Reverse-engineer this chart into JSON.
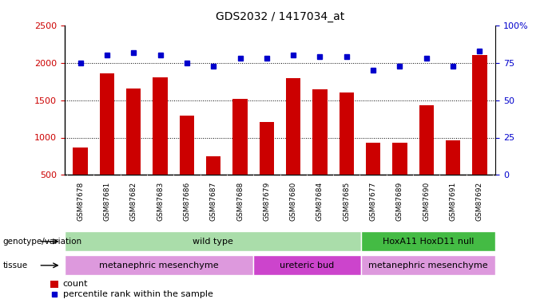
{
  "title": "GDS2032 / 1417034_at",
  "samples": [
    "GSM87678",
    "GSM87681",
    "GSM87682",
    "GSM87683",
    "GSM87686",
    "GSM87687",
    "GSM87688",
    "GSM87679",
    "GSM87680",
    "GSM87684",
    "GSM87685",
    "GSM87677",
    "GSM87689",
    "GSM87690",
    "GSM87691",
    "GSM87692"
  ],
  "counts": [
    870,
    1860,
    1660,
    1810,
    1290,
    750,
    1520,
    1210,
    1790,
    1650,
    1600,
    930,
    930,
    1430,
    960,
    2100
  ],
  "percentiles": [
    75,
    80,
    82,
    80,
    75,
    73,
    78,
    78,
    80,
    79,
    79,
    70,
    73,
    78,
    73,
    83
  ],
  "bar_color": "#cc0000",
  "dot_color": "#0000cc",
  "ylim_left": [
    500,
    2500
  ],
  "ylim_right": [
    0,
    100
  ],
  "yticks_left": [
    500,
    1000,
    1500,
    2000,
    2500
  ],
  "yticks_right": [
    0,
    25,
    50,
    75,
    100
  ],
  "grid_lines": [
    1000,
    1500,
    2000
  ],
  "title_fontsize": 10,
  "axis_label_color_left": "#cc0000",
  "axis_label_color_right": "#0000cc",
  "genotype_groups": [
    {
      "label": "wild type",
      "start": 0,
      "end": 11,
      "color": "#aaddaa"
    },
    {
      "label": "HoxA11 HoxD11 null",
      "start": 11,
      "end": 16,
      "color": "#44bb44"
    }
  ],
  "tissue_groups": [
    {
      "label": "metanephric mesenchyme",
      "start": 0,
      "end": 7,
      "color": "#dd99dd"
    },
    {
      "label": "ureteric bud",
      "start": 7,
      "end": 11,
      "color": "#cc44cc"
    },
    {
      "label": "metanephric mesenchyme",
      "start": 11,
      "end": 16,
      "color": "#dd99dd"
    }
  ],
  "legend_count_label": "count",
  "legend_percentile_label": "percentile rank within the sample",
  "genotype_label": "genotype/variation",
  "tissue_label": "tissue",
  "bg_color": "#ffffff",
  "plot_bg_color": "#ffffff",
  "tick_label_area_color": "#cccccc"
}
